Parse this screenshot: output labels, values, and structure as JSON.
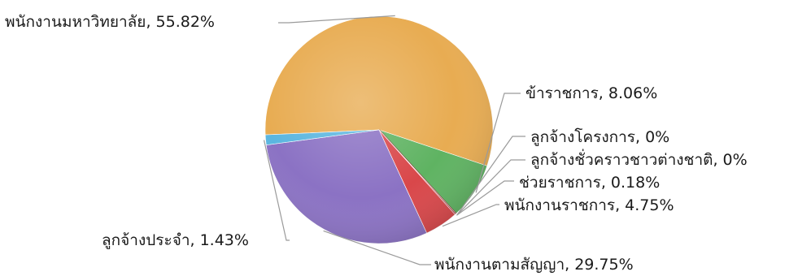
{
  "chart_data": {
    "type": "pie",
    "title": "",
    "slices": [
      {
        "label": "พนักงานมหาวิทยาลัย, 55.82%",
        "category": "พนักงานมหาวิทยาลัย",
        "value": 55.82,
        "color": "#E8AC52"
      },
      {
        "label": "ข้าราชการ, 8.06%",
        "category": "ข้าราชการ",
        "value": 8.06,
        "color": "#5FB362"
      },
      {
        "label": "ลูกจ้างโครงการ, 0%",
        "category": "ลูกจ้างโครงการ",
        "value": 0,
        "color": "#2A2A2A"
      },
      {
        "label": "ลูกจ้างชั่วคราวชาวต่างชาติ, 0%",
        "category": "ลูกจ้างชั่วคราวชาวต่างชาติ",
        "value": 0,
        "color": "#8B1E1E"
      },
      {
        "label": "ช่วยราชการ, 0.18%",
        "category": "ช่วยราชการ",
        "value": 0.18,
        "color": "#A0282C"
      },
      {
        "label": "พนักงานราชการ, 4.75%",
        "category": "พนักงานราชการ",
        "value": 4.75,
        "color": "#D9474A"
      },
      {
        "label": "พนักงานตามสัญญา, 29.75%",
        "category": "พนักงานตามสัญญา",
        "value": 29.75,
        "color": "#8B72C4"
      },
      {
        "label": "ลูกจ้างประจำ, 1.43%",
        "category": "ลูกจ้างประจำ",
        "value": 1.43,
        "color": "#5BB6E0"
      }
    ]
  }
}
